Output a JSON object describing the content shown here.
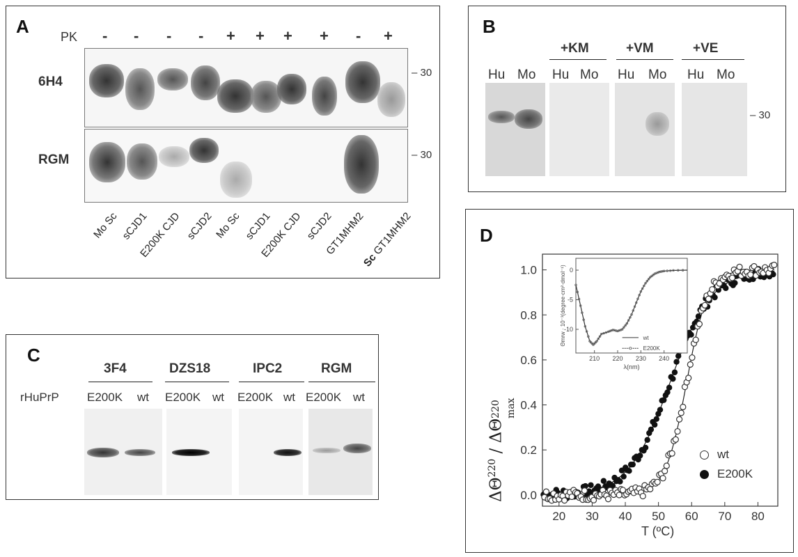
{
  "panelA": {
    "letter": "A",
    "pk_label": "PK",
    "pk_signs": [
      "-",
      "-",
      "-",
      "-",
      "+",
      "+",
      "+",
      "+",
      "-",
      "+"
    ],
    "row_labels": [
      "6H4",
      "RGM"
    ],
    "mw_marker": "30",
    "lanes": [
      "Mo Sc",
      "sCJD1",
      "E200K CJD",
      "sCJD2",
      "Mo Sc",
      "sCJD1",
      "E200K CJD",
      "sCJD2",
      "GT1MHM2"
    ],
    "last_lane_prefix": "Sc",
    "last_lane_rest": " GT1MHM2"
  },
  "panelB": {
    "letter": "B",
    "groups": [
      "+KM",
      "+VM",
      "+VE"
    ],
    "hu": "Hu",
    "mo": "Mo",
    "mw_marker": "30"
  },
  "panelC": {
    "letter": "C",
    "antibodies": [
      "3F4",
      "DZS18",
      "IPC2",
      "RGM"
    ],
    "row_label": "rHuPrP",
    "e200k": "E200K",
    "wt": "wt"
  },
  "panelD": {
    "letter": "D",
    "legend_wt": "wt",
    "legend_e200k": "E200K",
    "xlabel": "T (ºC)",
    "ylabel_num": "ΔΘ",
    "ylabel_num_sup": "220",
    "ylabel_sep": " / ",
    "ylabel_den": "ΔΘ",
    "ylabel_den_sup": "220",
    "ylabel_den_sub": "max",
    "inset": {
      "ylabel": "Θmrw · 10⁻³(degree·cm²·dmol⁻¹)",
      "xlabel": "λ(nm)",
      "legend_wt": "wt",
      "legend_e200k": "E200K",
      "xticks": [
        "210",
        "220",
        "230",
        "240"
      ],
      "yticks": [
        "0",
        "-5",
        "-10"
      ]
    }
  },
  "chart_data": {
    "type": "scatter",
    "xlabel": "T (ºC)",
    "ylabel": "ΔΘ220 / ΔΘ220max",
    "xlim": [
      15,
      86
    ],
    "ylim": [
      -0.05,
      1.07
    ],
    "xticks": [
      20,
      30,
      40,
      50,
      60,
      70,
      80
    ],
    "yticks": [
      0.0,
      0.2,
      0.4,
      0.6,
      0.8,
      1.0
    ],
    "series": [
      {
        "name": "wt",
        "marker": "open-circle",
        "Tm": 58.5,
        "width": 3.2,
        "fit_line": true
      },
      {
        "name": "E200K",
        "marker": "filled-circle",
        "Tm": 53.5,
        "width": 6.2,
        "fit_line": true
      }
    ]
  }
}
